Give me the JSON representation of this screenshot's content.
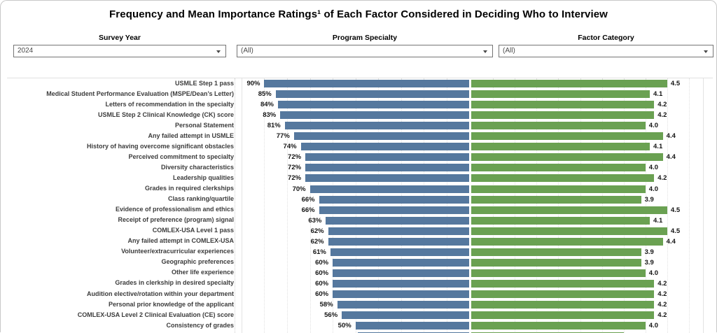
{
  "title": "Frequency and Mean Importance Ratings¹ of Each Factor Considered in Deciding Who to Interview",
  "filters": [
    {
      "label": "Survey Year",
      "value": "2024"
    },
    {
      "label": "Program Specialty",
      "value": "(All)"
    },
    {
      "label": "Factor Category",
      "value": "(All)"
    }
  ],
  "chart_data": {
    "type": "bar",
    "orientation": "horizontal-diverging",
    "title": "Frequency and Mean Importance Ratings of Each Factor Considered in Deciding Who to Interview",
    "categories": [
      "USMLE Step 1 pass",
      "Medical Student Performance Evaluation (MSPE/Dean’s Letter)",
      "Letters of recommendation in the specialty",
      "USMLE Step 2 Clinical Knowledge (CK) score",
      "Personal Statement",
      "Any failed attempt in USMLE",
      "History of having overcome significant obstacles",
      "Perceived commitment to specialty",
      "Diversity characteristics",
      "Leadership qualities",
      "Grades in required clerkships",
      "Class ranking/quartile",
      "Evidence of professionalism and ethics",
      "Receipt of preference (program) signal",
      "COMLEX-USA Level 1 pass",
      "Any failed attempt in COMLEX-USA",
      "Volunteer/extracurricular experiences",
      "Geographic preferences",
      "Other life experience",
      "Grades in clerkship in desired specialty",
      "Audition elective/rotation within your department",
      "Personal prior knowledge of the applicant",
      "COMLEX-USA Level 2 Clinical Evaluation (CE) score",
      "Consistency of grades"
    ],
    "series": [
      {
        "name": "Frequency cited (%)",
        "values": [
          90,
          85,
          84,
          83,
          81,
          77,
          74,
          72,
          72,
          72,
          70,
          66,
          66,
          63,
          62,
          62,
          61,
          60,
          60,
          60,
          60,
          58,
          56,
          50
        ],
        "color": "#55789e",
        "axis_range": [
          0,
          100
        ],
        "alignment": "right-aligned-at-divider"
      },
      {
        "name": "Mean importance rating",
        "values": [
          4.5,
          4.1,
          4.2,
          4.2,
          4.0,
          4.4,
          4.1,
          4.4,
          4.0,
          4.2,
          4.0,
          3.9,
          4.5,
          4.1,
          4.5,
          4.4,
          3.9,
          3.9,
          4.0,
          4.2,
          4.2,
          4.2,
          4.2,
          4.0
        ],
        "color": "#6aa152",
        "axis_range": [
          0,
          5.3
        ],
        "alignment": "left-aligned-at-divider"
      }
    ],
    "grid": true,
    "legend_position": "none",
    "partial_row_at_bottom": {
      "frequency_pct": 49,
      "rating": 3.5
    }
  }
}
